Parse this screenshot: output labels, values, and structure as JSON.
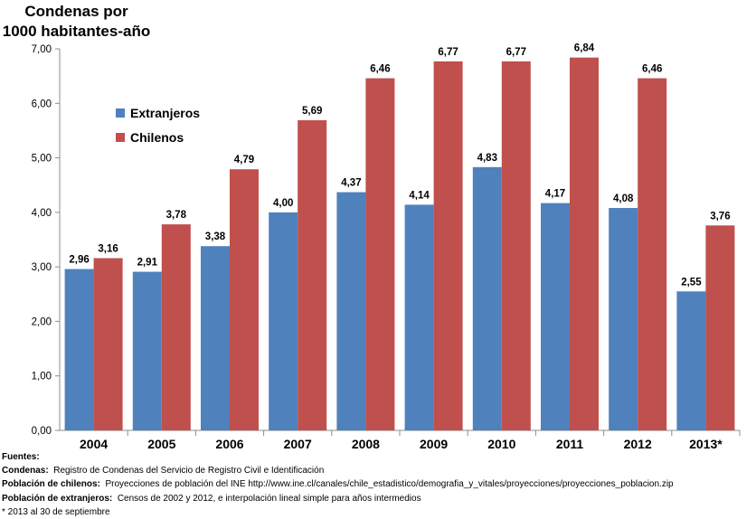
{
  "chart_data": {
    "type": "bar",
    "ytitle_line1": "Condenas por",
    "ytitle_line2": "1000 habitantes-año",
    "categories": [
      "2004",
      "2005",
      "2006",
      "2007",
      "2008",
      "2009",
      "2010",
      "2011",
      "2012",
      "2013*"
    ],
    "series": [
      {
        "name": "Extranjeros",
        "color": "#4F81BD",
        "values": [
          2.96,
          2.91,
          3.38,
          4.0,
          4.37,
          4.14,
          4.83,
          4.17,
          4.08,
          2.55
        ],
        "labels": [
          "2,96",
          "2,91",
          "3,38",
          "4,00",
          "4,37",
          "4,14",
          "4,83",
          "4,17",
          "4,08",
          "2,55"
        ]
      },
      {
        "name": "Chilenos",
        "color": "#C0504D",
        "values": [
          3.16,
          3.78,
          4.79,
          5.69,
          6.46,
          6.77,
          6.77,
          6.84,
          6.46,
          3.76
        ],
        "labels": [
          "3,16",
          "3,78",
          "4,79",
          "5,69",
          "6,46",
          "6,77",
          "6,77",
          "6,84",
          "6,46",
          "3,76"
        ]
      }
    ],
    "ylim": [
      0,
      7
    ],
    "yticks": [
      "0,00",
      "1,00",
      "2,00",
      "3,00",
      "4,00",
      "5,00",
      "6,00",
      "7,00"
    ],
    "grid": false,
    "legend_position": "top-left"
  },
  "sources": {
    "heading": "Fuentes:",
    "condenas_label": "Condenas:",
    "condenas_text": "Registro de Condenas del Servicio de Registro Civil e Identificación",
    "chilenos_label": "Población de chilenos:",
    "chilenos_text": "Proyecciones de población del INE http://www.ine.cl/canales/chile_estadistico/demografia_y_vitales/proyecciones/proyecciones_poblacion.zip",
    "extranjeros_label": "Población de extranjeros:",
    "extranjeros_text": "Censos de 2002 y 2012, e interpolación lineal simple para años intermedios",
    "note": "* 2013 al 30 de septiembre"
  }
}
